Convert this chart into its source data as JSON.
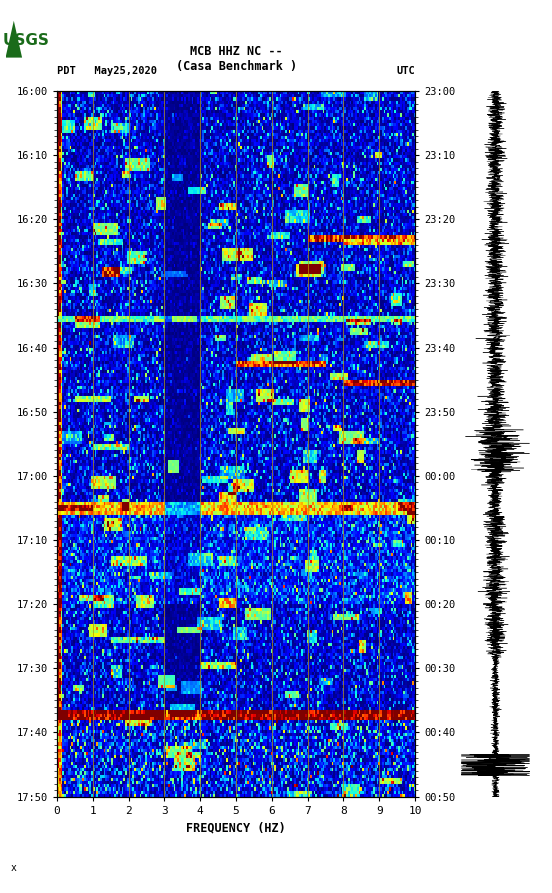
{
  "title_line1": "MCB HHZ NC --",
  "title_line2": "(Casa Benchmark )",
  "left_label": "PDT   May25,2020",
  "right_label": "UTC",
  "left_yticks": [
    "16:00",
    "16:10",
    "16:20",
    "16:30",
    "16:40",
    "16:50",
    "17:00",
    "17:10",
    "17:20",
    "17:30",
    "17:40",
    "17:50"
  ],
  "right_yticks": [
    "23:00",
    "23:10",
    "23:20",
    "23:30",
    "23:40",
    "23:50",
    "00:00",
    "00:10",
    "00:20",
    "00:30",
    "00:40",
    "00:50"
  ],
  "xticks": [
    0,
    1,
    2,
    3,
    4,
    5,
    6,
    7,
    8,
    9,
    10
  ],
  "xlabel": "FREQUENCY (HZ)",
  "freq_min": 0,
  "freq_max": 10,
  "n_time": 220,
  "n_freq": 200,
  "background_color": "#ffffff",
  "spectrogram_cmap": "jet",
  "seed": 42,
  "fig_width": 5.52,
  "fig_height": 8.93,
  "dpi": 100
}
